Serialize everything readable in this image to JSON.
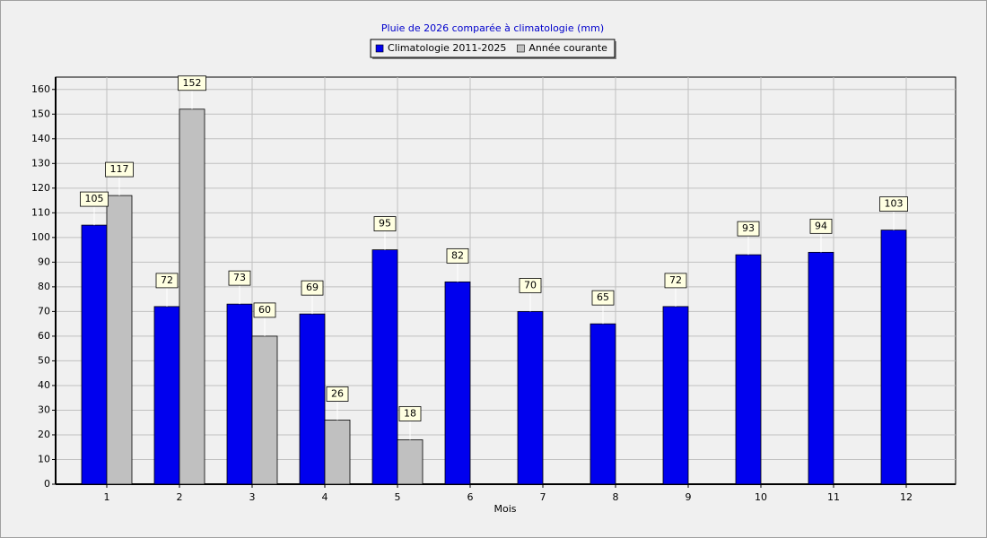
{
  "chart_data": {
    "type": "bar",
    "title": "Pluie de 2026 comparée à climatologie (mm)",
    "x_label": "Mois",
    "categories": [
      "1",
      "2",
      "3",
      "4",
      "5",
      "6",
      "7",
      "8",
      "9",
      "10",
      "11",
      "12"
    ],
    "series": [
      {
        "name": "Climatologie 2011-2025",
        "color": "#0000ee",
        "values": [
          105,
          72,
          73,
          69,
          95,
          82,
          70,
          65,
          72,
          93,
          94,
          103
        ]
      },
      {
        "name": "Année courante",
        "color": "#c0c0c0",
        "values": [
          117,
          152,
          60,
          26,
          18,
          null,
          null,
          null,
          null,
          null,
          null,
          null
        ]
      }
    ],
    "ylim": [
      0,
      165
    ],
    "yticks": [
      0,
      10,
      20,
      30,
      40,
      50,
      60,
      70,
      80,
      90,
      100,
      110,
      120,
      130,
      140,
      150,
      160
    ],
    "grid": true,
    "legend": "top"
  }
}
